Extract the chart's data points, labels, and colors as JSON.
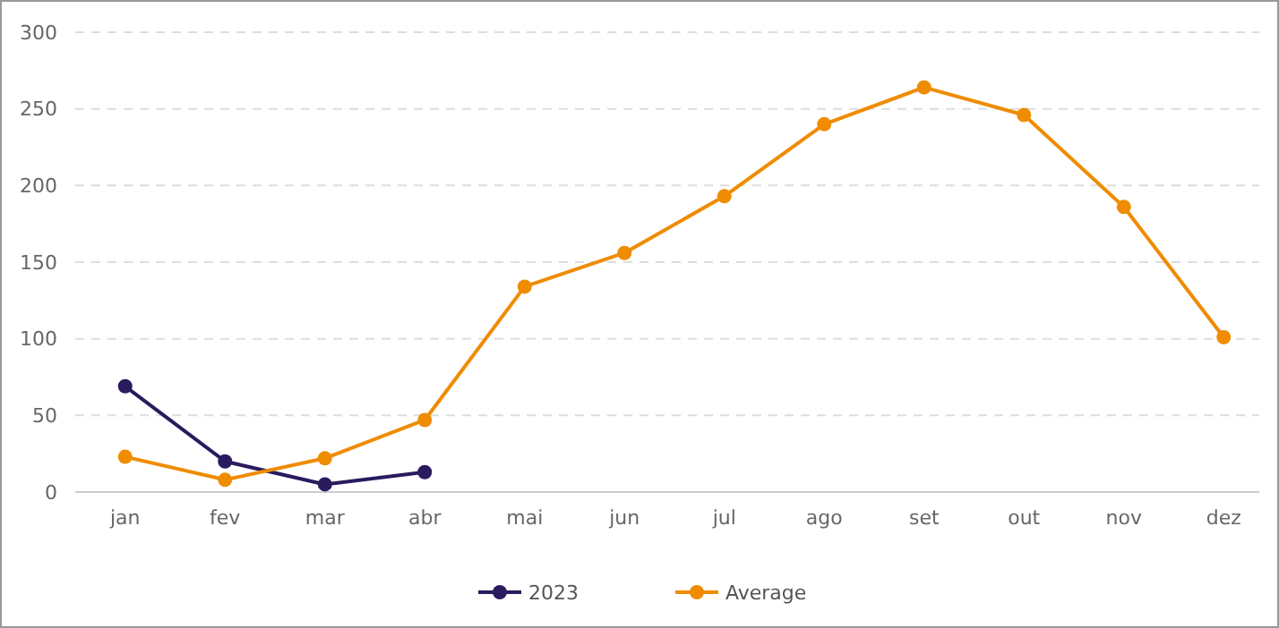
{
  "chart_data": {
    "type": "line",
    "categories": [
      "jan",
      "fev",
      "mar",
      "abr",
      "mai",
      "jun",
      "jul",
      "ago",
      "set",
      "out",
      "nov",
      "dez"
    ],
    "series": [
      {
        "name": "2023",
        "color": "#2a1a5e",
        "values": [
          69,
          20,
          5,
          13,
          null,
          null,
          null,
          null,
          null,
          null,
          null,
          null
        ]
      },
      {
        "name": "Average",
        "color": "#ef8c00",
        "values": [
          23,
          8,
          22,
          47,
          134,
          156,
          193,
          240,
          264,
          246,
          186,
          101
        ]
      }
    ],
    "ylim": [
      0,
      300
    ],
    "yticks": [
      0,
      50,
      100,
      150,
      200,
      250,
      300
    ],
    "grid": "y",
    "legend": "bottom",
    "marker": "circle",
    "line_style": "solid"
  }
}
